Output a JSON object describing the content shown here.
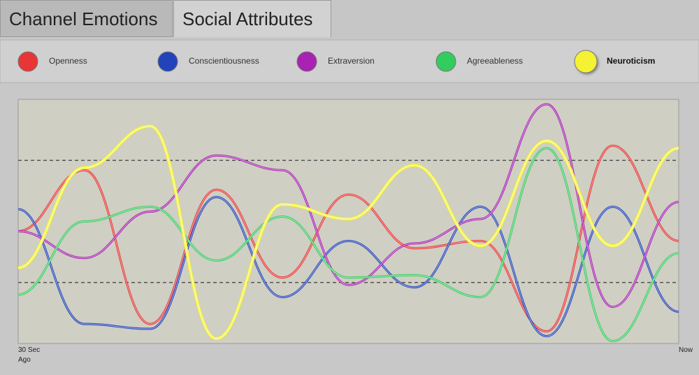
{
  "tabs": [
    "Channel Emotions",
    "Social Attributes"
  ],
  "chart_data": {
    "type": "line",
    "categories": [
      "30 Sec Ago",
      null,
      null,
      null,
      null,
      null,
      null,
      null,
      null,
      null,
      "Now"
    ],
    "ylim": [
      0,
      100
    ],
    "yticks": [
      25,
      75
    ],
    "grid": true,
    "series": [
      {
        "name": "Openness",
        "color": "#e83535",
        "values": [
          46,
          71,
          8,
          63,
          27,
          61,
          39,
          42,
          5,
          81,
          42
        ]
      },
      {
        "name": "Conscientiousness",
        "color": "#2244bb",
        "values": [
          55,
          8,
          6,
          60,
          19,
          42,
          23,
          56,
          3,
          56,
          13
        ]
      },
      {
        "name": "Extraversion",
        "color": "#a822b4",
        "values": [
          46,
          35,
          54,
          77,
          71,
          24,
          41,
          51,
          98,
          15,
          58
        ]
      },
      {
        "name": "Agreeableness",
        "color": "#33cc5e",
        "values": [
          20,
          50,
          56,
          34,
          52,
          27,
          28,
          19,
          80,
          1,
          37
        ]
      },
      {
        "name": "Neuroticism",
        "color": "#f4f232",
        "values": [
          31,
          72,
          89,
          2,
          57,
          51,
          73,
          40,
          83,
          40,
          80
        ]
      }
    ]
  }
}
